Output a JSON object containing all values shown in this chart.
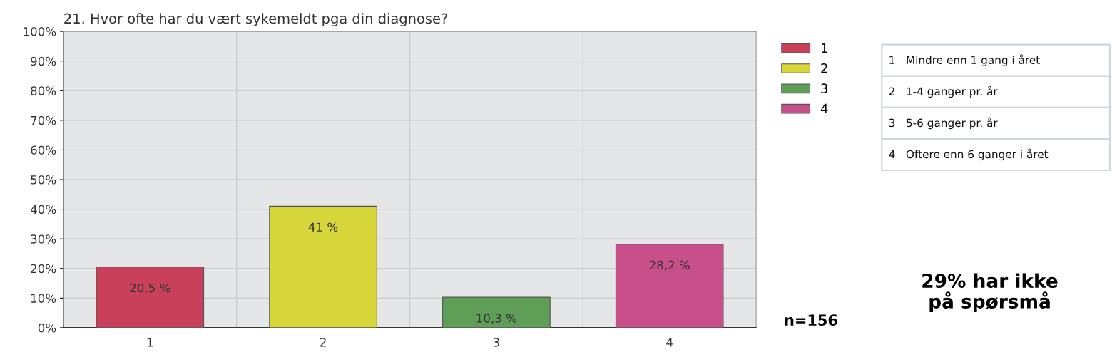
{
  "chart_data": {
    "type": "bar",
    "title": "21. Hvor ofte har du vært sykemeldt pga din diagnose?",
    "categories": [
      "1",
      "2",
      "3",
      "4"
    ],
    "stacked": true,
    "series": [
      {
        "name": "1",
        "color": "#c8405a",
        "values": [
          20.5,
          null,
          null,
          null
        ],
        "value_labels": [
          "20,5 %",
          null,
          null,
          null
        ]
      },
      {
        "name": "2",
        "color": "#d6d63a",
        "values": [
          null,
          41,
          null,
          null
        ],
        "value_labels": [
          null,
          "41 %",
          null,
          null
        ]
      },
      {
        "name": "3",
        "color": "#5e9e56",
        "values": [
          null,
          null,
          10.3,
          null
        ],
        "value_labels": [
          null,
          null,
          "10,3 %",
          null
        ]
      },
      {
        "name": "4",
        "color": "#c8508a",
        "values": [
          null,
          null,
          null,
          28.2
        ],
        "value_labels": [
          null,
          null,
          null,
          "28,2 %"
        ]
      }
    ],
    "ylim": [
      0,
      100
    ],
    "yticks": [
      {
        "value": 0,
        "label": "0%"
      },
      {
        "value": 10,
        "label": "10%"
      },
      {
        "value": 20,
        "label": "20%"
      },
      {
        "value": 30,
        "label": "30%"
      },
      {
        "value": 40,
        "label": "40%"
      },
      {
        "value": 50,
        "label": "50%"
      },
      {
        "value": 60,
        "label": "60%"
      },
      {
        "value": 70,
        "label": "70%"
      },
      {
        "value": 80,
        "label": "80%"
      },
      {
        "value": 90,
        "label": "90%"
      },
      {
        "value": 100,
        "label": "100%"
      }
    ],
    "grid": true,
    "legend": "right",
    "annotations": [
      "1   Mindre enn 1 gang i året",
      "2   1-4 ganger pr. år",
      "3   5-6 ganger pr. år",
      "4   Oftere enn 6 ganger i året",
      "n=156",
      "29% har ikke\npå spørsmå"
    ]
  }
}
